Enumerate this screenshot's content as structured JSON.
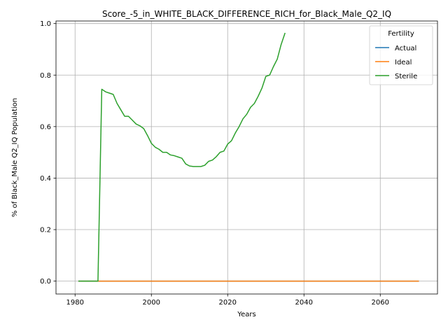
{
  "chart_data": {
    "type": "line",
    "title": "Score_-5_in_WHITE_BLACK_DIFFERENCE_RICH_for_Black_Male_Q2_IQ",
    "xlabel": "Years",
    "ylabel": "% of Black_Male Q2_IQ Population",
    "xlim": [
      1975,
      2075
    ],
    "ylim": [
      -0.05,
      1.01
    ],
    "xticks": [
      1980,
      2000,
      2020,
      2040,
      2060
    ],
    "xtick_labels": [
      "1980",
      "2000",
      "2020",
      "2040",
      "2060"
    ],
    "yticks": [
      0.0,
      0.2,
      0.4,
      0.6,
      0.8,
      1.0
    ],
    "ytick_labels": [
      "0.0",
      "0.2",
      "0.4",
      "0.6",
      "0.8",
      "1.0"
    ],
    "grid": true,
    "legend": {
      "title": "Fertility",
      "position": "top-right"
    },
    "series": [
      {
        "name": "Actual",
        "color": "#1f77b4",
        "x": [
          1981,
          2070
        ],
        "y": [
          0.0,
          0.0
        ]
      },
      {
        "name": "Ideal",
        "color": "#ff7f0e",
        "x": [
          1981,
          2070
        ],
        "y": [
          0.0,
          0.0
        ]
      },
      {
        "name": "Sterile",
        "color": "#2ca02c",
        "x": [
          1981,
          1982,
          1983,
          1984,
          1985,
          1986,
          1987,
          1988,
          1989,
          1990,
          1991,
          1992,
          1993,
          1994,
          1995,
          1996,
          1997,
          1998,
          1999,
          2000,
          2001,
          2002,
          2003,
          2004,
          2005,
          2006,
          2007,
          2008,
          2009,
          2010,
          2011,
          2012,
          2013,
          2014,
          2015,
          2016,
          2017,
          2018,
          2019,
          2020,
          2021,
          2022,
          2023,
          2024,
          2025,
          2026,
          2027,
          2028,
          2029,
          2030,
          2031,
          2032,
          2033,
          2034,
          2035
        ],
        "y": [
          0.0,
          0.0,
          0.0,
          0.0,
          0.0,
          0.0,
          0.745,
          0.735,
          0.73,
          0.725,
          0.69,
          0.665,
          0.64,
          0.64,
          0.625,
          0.61,
          0.603,
          0.592,
          0.565,
          0.535,
          0.52,
          0.512,
          0.5,
          0.5,
          0.49,
          0.487,
          0.482,
          0.477,
          0.455,
          0.447,
          0.445,
          0.445,
          0.445,
          0.45,
          0.465,
          0.47,
          0.483,
          0.5,
          0.505,
          0.532,
          0.545,
          0.575,
          0.6,
          0.63,
          0.648,
          0.675,
          0.69,
          0.718,
          0.75,
          0.795,
          0.8,
          0.833,
          0.862,
          0.918,
          0.962
        ]
      }
    ]
  }
}
